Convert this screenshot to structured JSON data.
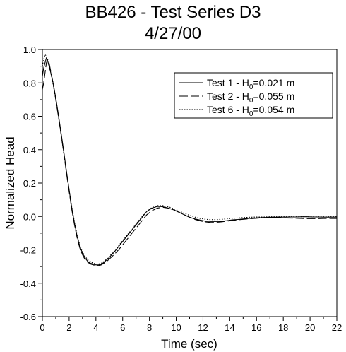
{
  "chart_data": {
    "type": "line",
    "title_line1": "BB426 - Test Series D3",
    "title_line2": "4/27/00",
    "xlabel": "Time (sec)",
    "ylabel": "Normalized Head",
    "xlim": [
      0,
      22
    ],
    "ylim": [
      -0.6,
      1.0
    ],
    "xticks": [
      0,
      2,
      4,
      6,
      8,
      10,
      12,
      14,
      16,
      18,
      20,
      22
    ],
    "yticks": [
      1.0,
      0.8,
      0.6,
      0.4,
      0.2,
      0.0,
      -0.2,
      -0.4,
      -0.6
    ],
    "xtick_labels": [
      "0",
      "2",
      "4",
      "6",
      "8",
      "10",
      "12",
      "14",
      "16",
      "18",
      "20",
      "22"
    ],
    "ytick_labels": [
      "1.0",
      "0.8",
      "0.6",
      "0.4",
      "0.2",
      "0.0",
      "-0.2",
      "-0.4",
      "-0.6"
    ],
    "grid": false,
    "legend_position": "top-right",
    "series": [
      {
        "name_prefix": "Test 1 - H",
        "name_sub": "0",
        "name_suffix": "=0.021 m",
        "dash": "solid",
        "x": [
          0,
          0.1,
          0.2,
          0.3,
          0.4,
          0.5,
          0.6,
          0.8,
          1.0,
          1.2,
          1.4,
          1.6,
          1.8,
          2.0,
          2.2,
          2.4,
          2.6,
          2.8,
          3.0,
          3.2,
          3.4,
          3.6,
          3.8,
          4.0,
          4.2,
          4.4,
          4.6,
          4.8,
          5.0,
          5.4,
          5.8,
          6.2,
          6.6,
          7.0,
          7.4,
          7.8,
          8.2,
          8.6,
          9.0,
          9.4,
          9.8,
          10.2,
          10.6,
          11.0,
          11.4,
          11.8,
          12.2,
          12.6,
          13.0,
          13.4,
          13.8,
          14.2,
          14.6,
          15.0,
          15.4,
          15.8,
          16.2,
          16.6,
          17.0,
          17.4,
          17.8,
          18.2,
          18.6,
          19.0,
          19.4,
          19.8,
          20.2,
          20.6,
          21.0,
          21.4,
          21.8,
          22.0
        ],
        "y": [
          0.84,
          0.89,
          0.92,
          0.95,
          0.93,
          0.9,
          0.87,
          0.8,
          0.71,
          0.61,
          0.5,
          0.39,
          0.27,
          0.16,
          0.05,
          -0.04,
          -0.12,
          -0.18,
          -0.22,
          -0.25,
          -0.27,
          -0.28,
          -0.285,
          -0.29,
          -0.29,
          -0.285,
          -0.275,
          -0.26,
          -0.245,
          -0.21,
          -0.17,
          -0.13,
          -0.09,
          -0.05,
          -0.01,
          0.03,
          0.05,
          0.06,
          0.058,
          0.05,
          0.04,
          0.025,
          0.01,
          -0.005,
          -0.015,
          -0.022,
          -0.028,
          -0.03,
          -0.03,
          -0.028,
          -0.025,
          -0.02,
          -0.018,
          -0.015,
          -0.012,
          -0.01,
          -0.008,
          -0.006,
          -0.005,
          -0.005,
          -0.004,
          -0.004,
          -0.003,
          -0.003,
          -0.002,
          -0.002,
          -0.003,
          -0.003,
          -0.004,
          -0.004,
          -0.004,
          -0.004
        ]
      },
      {
        "name_prefix": "Test 2 - H",
        "name_sub": "0",
        "name_suffix": "=0.055 m",
        "dash": "long-dash",
        "x": [
          0,
          0.1,
          0.2,
          0.3,
          0.4,
          0.5,
          0.6,
          0.8,
          1.0,
          1.2,
          1.4,
          1.6,
          1.8,
          2.0,
          2.2,
          2.4,
          2.6,
          2.8,
          3.0,
          3.2,
          3.4,
          3.6,
          3.8,
          4.0,
          4.2,
          4.4,
          4.6,
          4.8,
          5.0,
          5.4,
          5.8,
          6.2,
          6.6,
          7.0,
          7.4,
          7.8,
          8.2,
          8.6,
          9.0,
          9.4,
          9.8,
          10.2,
          10.6,
          11.0,
          11.4,
          11.8,
          12.2,
          12.6,
          13.0,
          13.4,
          13.8,
          14.2,
          14.6,
          15.0,
          15.4,
          15.8,
          16.2,
          16.6,
          17.0,
          17.4,
          17.8,
          18.2,
          18.6,
          19.0,
          19.4,
          19.8,
          20.2,
          20.6,
          21.0,
          21.4,
          21.8,
          22.0
        ],
        "y": [
          0.76,
          0.8,
          0.86,
          0.92,
          0.94,
          0.92,
          0.88,
          0.8,
          0.7,
          0.6,
          0.49,
          0.38,
          0.26,
          0.15,
          0.04,
          -0.05,
          -0.13,
          -0.19,
          -0.23,
          -0.26,
          -0.275,
          -0.285,
          -0.29,
          -0.295,
          -0.295,
          -0.29,
          -0.28,
          -0.27,
          -0.255,
          -0.225,
          -0.19,
          -0.15,
          -0.11,
          -0.07,
          -0.03,
          0.01,
          0.035,
          0.05,
          0.055,
          0.05,
          0.04,
          0.025,
          0.01,
          -0.005,
          -0.018,
          -0.027,
          -0.033,
          -0.036,
          -0.035,
          -0.032,
          -0.028,
          -0.024,
          -0.02,
          -0.017,
          -0.014,
          -0.012,
          -0.01,
          -0.009,
          -0.008,
          -0.008,
          -0.008,
          -0.009,
          -0.01,
          -0.011,
          -0.012,
          -0.013,
          -0.013,
          -0.013,
          -0.012,
          -0.012,
          -0.012,
          -0.012
        ]
      },
      {
        "name_prefix": "Test 6 - H",
        "name_sub": "0",
        "name_suffix": "=0.054 m",
        "dash": "dotted",
        "x": [
          0,
          0.1,
          0.2,
          0.3,
          0.4,
          0.5,
          0.6,
          0.8,
          1.0,
          1.2,
          1.4,
          1.6,
          1.8,
          2.0,
          2.2,
          2.4,
          2.6,
          2.8,
          3.0,
          3.2,
          3.4,
          3.6,
          3.8,
          4.0,
          4.2,
          4.4,
          4.6,
          4.8,
          5.0,
          5.4,
          5.8,
          6.2,
          6.6,
          7.0,
          7.4,
          7.8,
          8.2,
          8.6,
          9.0,
          9.4,
          9.8,
          10.2,
          10.6,
          11.0,
          11.4,
          11.8,
          12.2,
          12.6,
          13.0,
          13.4,
          13.8,
          14.2,
          14.6,
          15.0,
          15.4,
          15.8,
          16.2,
          16.6,
          17.0,
          17.4,
          17.8,
          18.2,
          18.6,
          19.0,
          19.4,
          19.8,
          20.2,
          20.6,
          21.0,
          21.4,
          21.8,
          22.0
        ],
        "y": [
          0.9,
          0.94,
          0.97,
          0.96,
          0.93,
          0.9,
          0.87,
          0.79,
          0.7,
          0.6,
          0.49,
          0.38,
          0.27,
          0.16,
          0.06,
          -0.03,
          -0.11,
          -0.17,
          -0.21,
          -0.24,
          -0.26,
          -0.27,
          -0.28,
          -0.285,
          -0.285,
          -0.28,
          -0.27,
          -0.255,
          -0.24,
          -0.205,
          -0.165,
          -0.125,
          -0.085,
          -0.045,
          -0.005,
          0.03,
          0.055,
          0.065,
          0.065,
          0.058,
          0.047,
          0.033,
          0.019,
          0.006,
          -0.004,
          -0.012,
          -0.017,
          -0.019,
          -0.019,
          -0.017,
          -0.014,
          -0.011,
          -0.009,
          -0.007,
          -0.005,
          -0.004,
          -0.003,
          -0.003,
          -0.002,
          -0.002,
          -0.002,
          -0.002,
          -0.002,
          -0.002,
          -0.002,
          -0.002,
          -0.002,
          -0.002,
          -0.002,
          -0.002,
          -0.002,
          -0.002
        ]
      }
    ]
  }
}
